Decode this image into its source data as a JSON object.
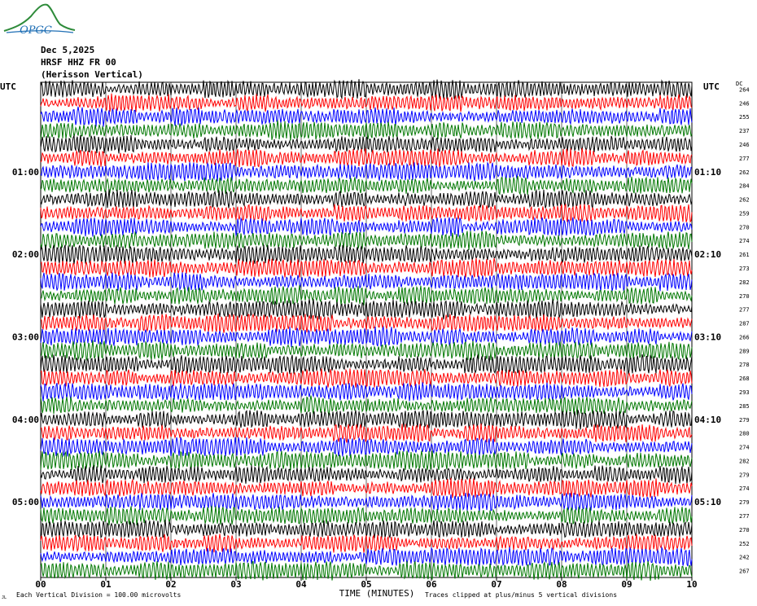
{
  "logo": {
    "text": "OPGC",
    "icon": "mountain-logo-icon"
  },
  "header": {
    "date": "Dec 5,2025",
    "station": "HRSF HHZ FR 00",
    "description": "(Herisson Vertical)"
  },
  "left_axis_title": "UTC",
  "right_axis_title": "UTC",
  "dc_label": "DC",
  "footer": {
    "scale_note": "Each Vertical Division =  100.00 microvolts",
    "clip_note": "Traces clipped at plus/minus 5 vertical divisions",
    "corner_mark": "JL"
  },
  "colors": {
    "trace_cycle": [
      "#000000",
      "#ff0000",
      "#0000ff",
      "#007700"
    ],
    "grid": "#000000",
    "background": "#ffffff"
  },
  "chart_data": {
    "type": "line",
    "title": "",
    "xlabel": "TIME (MINUTES)",
    "ylabel": "",
    "x_ticks": [
      "00",
      "01",
      "02",
      "03",
      "04",
      "05",
      "06",
      "07",
      "08",
      "09",
      "10"
    ],
    "xlim": [
      0,
      10
    ],
    "minutes_per_line": 10,
    "line_count": 36,
    "left_hour_labels": [
      {
        "line": 6,
        "label": "01:00"
      },
      {
        "line": 12,
        "label": "02:00"
      },
      {
        "line": 18,
        "label": "03:00"
      },
      {
        "line": 24,
        "label": "04:00"
      },
      {
        "line": 30,
        "label": "05:00"
      }
    ],
    "right_hour_labels": [
      {
        "line": 6,
        "label": "01:10"
      },
      {
        "line": 12,
        "label": "02:10"
      },
      {
        "line": 18,
        "label": "03:10"
      },
      {
        "line": 24,
        "label": "04:10"
      },
      {
        "line": 30,
        "label": "05:10"
      }
    ],
    "dc_offsets": [
      264,
      246,
      255,
      237,
      246,
      277,
      262,
      284,
      262,
      259,
      270,
      274,
      261,
      273,
      282,
      270,
      277,
      287,
      266,
      289,
      278,
      268,
      293,
      285,
      279,
      280,
      274,
      282,
      279,
      274,
      279,
      277,
      270,
      252,
      242,
      267
    ],
    "grid": true,
    "clip_divisions": 5
  }
}
